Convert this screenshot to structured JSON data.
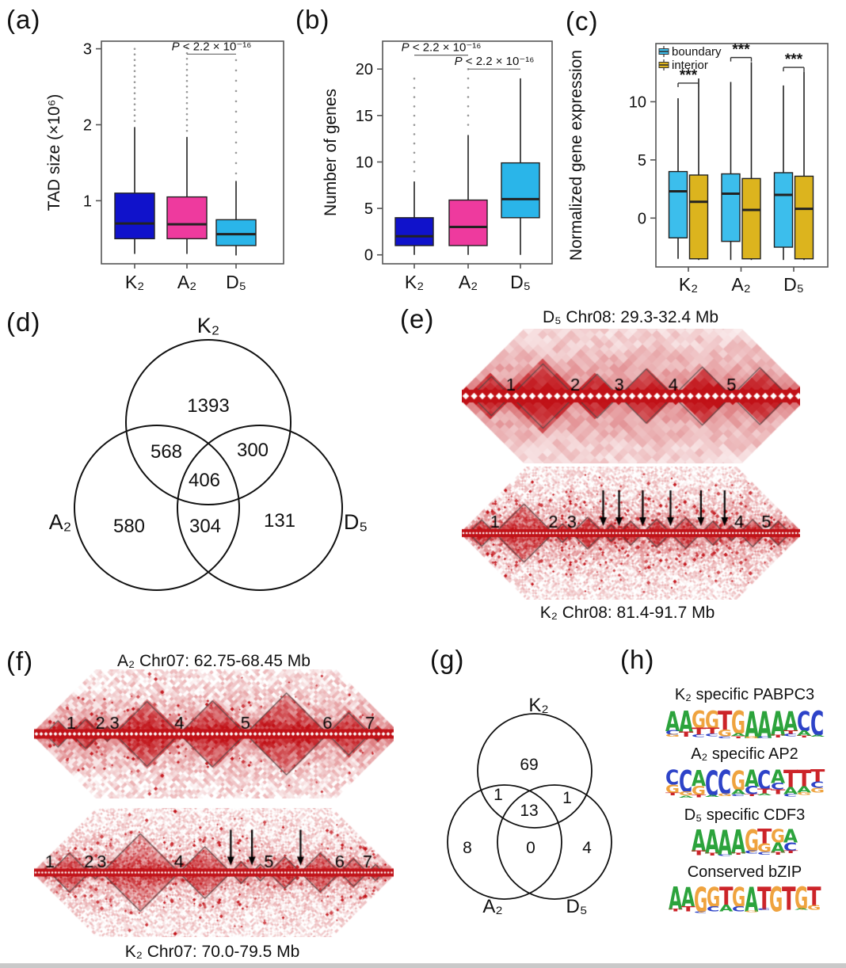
{
  "panel_labels": {
    "a": "(a)",
    "b": "(b)",
    "c": "(c)",
    "d": "(d)",
    "e": "(e)",
    "f": "(f)",
    "g": "(g)",
    "h": "(h)"
  },
  "logo_colors": {
    "A": "#2ca33c",
    "C": "#2d43c8",
    "G": "#efa33f",
    "T": "#cc2429"
  },
  "chart_data": [
    {
      "id": "a",
      "type": "box",
      "ylabel": "TAD size (×10⁶)",
      "yticks": [
        1,
        2,
        3
      ],
      "ylim": [
        0.17,
        3.1
      ],
      "categories": [
        "K₂",
        "A₂",
        "D₅"
      ],
      "boxes": [
        {
          "label": "K₂",
          "color": "#1012cb",
          "whislo": 0.3,
          "q1": 0.5,
          "med": 0.7,
          "q3": 1.1,
          "whishi": 1.97,
          "out_lo": 2.05,
          "out_hi": 3.0,
          "out_step": 7
        },
        {
          "label": "A₂",
          "color": "#ee3a9e",
          "whislo": 0.3,
          "q1": 0.5,
          "med": 0.69,
          "q3": 1.05,
          "whishi": 1.84,
          "out_lo": 1.92,
          "out_hi": 3.02,
          "out_step": 7
        },
        {
          "label": "D₅",
          "color": "#2ab5e9",
          "whislo": 0.28,
          "q1": 0.41,
          "med": 0.56,
          "q3": 0.75,
          "whishi": 1.26,
          "out_lo": 1.36,
          "out_hi": 2.92,
          "out_step": 13
        }
      ],
      "annotations": [
        {
          "text": "P < 2.2 × 10⁻¹⁶",
          "from": 1,
          "to": 2,
          "line_y": 2.93
        }
      ]
    },
    {
      "id": "b",
      "type": "box",
      "ylabel": "Number of genes",
      "yticks": [
        0,
        5,
        10,
        15,
        20
      ],
      "ylim": [
        -0.96,
        23.0
      ],
      "categories": [
        "K₂",
        "A₂",
        "D₅"
      ],
      "boxes": [
        {
          "label": "K₂",
          "color": "#1012cb",
          "whislo": 0,
          "q1": 1,
          "med": 2,
          "q3": 4,
          "whishi": 7.9,
          "out_lo": 9,
          "out_hi": 19,
          "out_step": 11.7
        },
        {
          "label": "A₂",
          "color": "#ee3a9e",
          "whislo": 0,
          "q1": 1,
          "med": 3,
          "q3": 5.9,
          "whishi": 12.9,
          "out_lo": 14,
          "out_hi": 20,
          "out_step": 11.7
        },
        {
          "label": "D₅",
          "color": "#2ab5e9",
          "whislo": 0,
          "q1": 4,
          "med": 6,
          "q3": 9.9,
          "whishi": 19
        }
      ],
      "annotations": [
        {
          "text": "P < 2.2 × 10⁻¹⁶",
          "from": 0,
          "to": 1,
          "line_y": 21.5
        },
        {
          "text": "P < 2.2 × 10⁻¹⁶",
          "from": 1,
          "to": 2,
          "line_y": 20.0
        }
      ]
    },
    {
      "id": "c",
      "type": "box_grouped",
      "ylabel": "Normalized gene expression",
      "yticks": [
        0,
        5,
        10
      ],
      "ylim": [
        -4.2,
        15.0
      ],
      "legend": [
        {
          "label": "boundary",
          "color": "#3cbeec"
        },
        {
          "label": "interior",
          "color": "#dcb41e"
        }
      ],
      "groups": [
        {
          "label": "K₂",
          "sig": "***",
          "sig_y": 11.6,
          "boxes": [
            {
              "series": "boundary",
              "color": "#3cbeec",
              "whislo": -3.5,
              "q1": -1.7,
              "med": 2.3,
              "q3": 4.0,
              "whishi": 10.3
            },
            {
              "series": "interior",
              "color": "#dcb41e",
              "whislo": -3.6,
              "q1": -3.5,
              "med": 1.4,
              "q3": 3.7,
              "whishi": 12.0
            }
          ]
        },
        {
          "label": "A₂",
          "sig": "***",
          "sig_y": 13.8,
          "boxes": [
            {
              "series": "boundary",
              "color": "#3cbeec",
              "whislo": -3.6,
              "q1": -2.0,
              "med": 2.1,
              "q3": 3.8,
              "whishi": 11.7
            },
            {
              "series": "interior",
              "color": "#dcb41e",
              "whislo": -3.6,
              "q1": -3.5,
              "med": 0.7,
              "q3": 3.4,
              "whishi": 13.4
            }
          ]
        },
        {
          "label": "D₅",
          "sig": "***",
          "sig_y": 12.95,
          "boxes": [
            {
              "series": "boundary",
              "color": "#3cbeec",
              "whislo": -3.6,
              "q1": -2.5,
              "med": 2.0,
              "q3": 3.9,
              "whishi": 11.4
            },
            {
              "series": "interior",
              "color": "#dcb41e",
              "whislo": -3.6,
              "q1": -3.5,
              "med": 0.8,
              "q3": 3.6,
              "whishi": 12.6
            }
          ]
        }
      ]
    },
    {
      "id": "d",
      "type": "venn3",
      "set_labels": [
        "K₂",
        "A₂",
        "D₅"
      ],
      "regions": {
        "K2_only": 1393,
        "K2_A2": 568,
        "K2_D5": 300,
        "center": 406,
        "A2_only": 580,
        "A2_D5": 304,
        "D5_only": 131
      }
    },
    {
      "id": "g",
      "type": "venn3",
      "set_labels": [
        "K₂",
        "A₂",
        "D₅"
      ],
      "regions": {
        "K2_only": 69,
        "K2_A2": 1,
        "K2_D5": 1,
        "center": 13,
        "A2_only": 8,
        "A2_D5": 0,
        "D5_only": 4
      }
    },
    {
      "id": "e_top",
      "type": "hic_heatmap",
      "title": "D₅ Chr08: 29.3-32.4 Mb",
      "tad_labels": [
        {
          "t": "1",
          "x": 0.145
        },
        {
          "t": "2",
          "x": 0.335
        },
        {
          "t": "3",
          "x": 0.465
        },
        {
          "t": "4",
          "x": 0.625
        },
        {
          "t": "5",
          "x": 0.797
        }
      ],
      "arrows": [],
      "tads": [
        [
          0.03,
          0.145
        ],
        [
          0.145,
          0.335
        ],
        [
          0.335,
          0.465
        ],
        [
          0.465,
          0.625
        ],
        [
          0.625,
          0.797
        ],
        [
          0.797,
          0.965
        ]
      ]
    },
    {
      "id": "e_bottom",
      "type": "hic_heatmap",
      "caption": "K₂ Chr08: 81.4-91.7 Mb",
      "tad_labels": [
        {
          "t": "1",
          "x": 0.098
        },
        {
          "t": "2",
          "x": 0.27
        },
        {
          "t": "3",
          "x": 0.325
        },
        {
          "t": "4",
          "x": 0.82
        },
        {
          "t": "5",
          "x": 0.9
        }
      ],
      "arrows": [
        0.418,
        0.465,
        0.535,
        0.617,
        0.707,
        0.777
      ],
      "tads": [
        [
          0.02,
          0.098
        ],
        [
          0.098,
          0.27
        ],
        [
          0.27,
          0.325
        ],
        [
          0.325,
          0.418
        ],
        [
          0.418,
          0.465
        ],
        [
          0.465,
          0.535
        ],
        [
          0.535,
          0.617
        ],
        [
          0.617,
          0.707
        ],
        [
          0.707,
          0.777
        ],
        [
          0.777,
          0.82
        ],
        [
          0.82,
          0.9
        ],
        [
          0.9,
          0.97
        ]
      ]
    },
    {
      "id": "f_top",
      "type": "hic_heatmap",
      "title": "A₂ Chr07: 62.75-68.45 Mb",
      "tad_labels": [
        {
          "t": "1",
          "x": 0.103
        },
        {
          "t": "2",
          "x": 0.184
        },
        {
          "t": "3",
          "x": 0.224
        },
        {
          "t": "4",
          "x": 0.404
        },
        {
          "t": "5",
          "x": 0.588
        },
        {
          "t": "6",
          "x": 0.816
        },
        {
          "t": "7",
          "x": 0.934
        }
      ],
      "arrows": [],
      "tads": [
        [
          0.03,
          0.103
        ],
        [
          0.103,
          0.184
        ],
        [
          0.184,
          0.224
        ],
        [
          0.224,
          0.404
        ],
        [
          0.404,
          0.588
        ],
        [
          0.588,
          0.816
        ],
        [
          0.816,
          0.934
        ],
        [
          0.934,
          0.97
        ]
      ]
    },
    {
      "id": "f_bottom",
      "type": "hic_heatmap",
      "caption": "K₂ Chr07: 70.0-79.5 Mb",
      "tad_labels": [
        {
          "t": "1",
          "x": 0.044
        },
        {
          "t": "2",
          "x": 0.153
        },
        {
          "t": "3",
          "x": 0.188
        },
        {
          "t": "4",
          "x": 0.403
        },
        {
          "t": "5",
          "x": 0.653
        },
        {
          "t": "6",
          "x": 0.85
        },
        {
          "t": "7",
          "x": 0.927
        }
      ],
      "arrows": [
        0.547,
        0.606,
        0.741
      ],
      "tads": [
        [
          0.02,
          0.044
        ],
        [
          0.044,
          0.153
        ],
        [
          0.153,
          0.188
        ],
        [
          0.188,
          0.403
        ],
        [
          0.403,
          0.547
        ],
        [
          0.547,
          0.606
        ],
        [
          0.606,
          0.653
        ],
        [
          0.653,
          0.741
        ],
        [
          0.741,
          0.85
        ],
        [
          0.85,
          0.927
        ],
        [
          0.927,
          0.972
        ]
      ]
    },
    {
      "id": "logo_pabpc3",
      "type": "sequence_logo",
      "title": "K₂ specific PABPC3",
      "consensus": "AAGGTGAAAACC",
      "columns": [
        [
          [
            "A",
            0.6
          ],
          [
            "C",
            0.13
          ],
          [
            "G",
            0.08
          ]
        ],
        [
          [
            "A",
            0.66
          ],
          [
            "T",
            0.15
          ]
        ],
        [
          [
            "G",
            0.52
          ],
          [
            "T",
            0.22
          ],
          [
            "C",
            0.07
          ]
        ],
        [
          [
            "G",
            0.55
          ],
          [
            "T",
            0.18
          ],
          [
            "C",
            0.07
          ]
        ],
        [
          [
            "T",
            0.58
          ],
          [
            "G",
            0.2
          ],
          [
            "C",
            0.06
          ]
        ],
        [
          [
            "G",
            0.7
          ],
          [
            "A",
            0.08
          ],
          [
            "T",
            0.06
          ]
        ],
        [
          [
            "A",
            0.8
          ],
          [
            "G",
            0.06
          ]
        ],
        [
          [
            "A",
            0.8
          ],
          [
            "C",
            0.05
          ]
        ],
        [
          [
            "A",
            0.74
          ],
          [
            "T",
            0.08
          ]
        ],
        [
          [
            "A",
            0.6
          ],
          [
            "T",
            0.12
          ],
          [
            "C",
            0.07
          ]
        ],
        [
          [
            "C",
            0.6
          ],
          [
            "A",
            0.16
          ],
          [
            "T",
            0.06
          ]
        ],
        [
          [
            "C",
            0.74
          ],
          [
            "A",
            0.06
          ]
        ]
      ]
    },
    {
      "id": "logo_ap2",
      "type": "sequence_logo",
      "title": "A₂ specific AP2",
      "consensus": "CCACCGACATTT",
      "columns": [
        [
          [
            "C",
            0.45
          ],
          [
            "G",
            0.25
          ],
          [
            "T",
            0.08
          ]
        ],
        [
          [
            "C",
            0.66
          ],
          [
            "G",
            0.12
          ],
          [
            "A",
            0.06
          ]
        ],
        [
          [
            "A",
            0.48
          ],
          [
            "G",
            0.28
          ],
          [
            "T",
            0.07
          ]
        ],
        [
          [
            "C",
            0.76
          ],
          [
            "A",
            0.06
          ]
        ],
        [
          [
            "C",
            0.72
          ],
          [
            "G",
            0.08
          ]
        ],
        [
          [
            "G",
            0.6
          ],
          [
            "A",
            0.14
          ],
          [
            "C",
            0.06
          ]
        ],
        [
          [
            "A",
            0.5
          ],
          [
            "C",
            0.24
          ],
          [
            "T",
            0.06
          ]
        ],
        [
          [
            "C",
            0.58
          ],
          [
            "T",
            0.14
          ],
          [
            "A",
            0.06
          ]
        ],
        [
          [
            "A",
            0.4
          ],
          [
            "C",
            0.2
          ],
          [
            "T",
            0.13
          ]
        ],
        [
          [
            "T",
            0.52
          ],
          [
            "A",
            0.22
          ],
          [
            "C",
            0.07
          ]
        ],
        [
          [
            "T",
            0.52
          ],
          [
            "A",
            0.18
          ],
          [
            "G",
            0.07
          ]
        ],
        [
          [
            "T",
            0.38
          ],
          [
            "C",
            0.18
          ],
          [
            "G",
            0.13
          ]
        ]
      ]
    },
    {
      "id": "logo_cdf3",
      "type": "sequence_logo",
      "title": "D₅ specific CDF3",
      "consensus": "AAAAGTGA",
      "columns": [
        [
          [
            "A",
            0.66
          ],
          [
            "T",
            0.14
          ]
        ],
        [
          [
            "A",
            0.72
          ],
          [
            "T",
            0.08
          ]
        ],
        [
          [
            "A",
            0.76
          ],
          [
            "C",
            0.05
          ]
        ],
        [
          [
            "A",
            0.72
          ],
          [
            "T",
            0.06
          ]
        ],
        [
          [
            "G",
            0.66
          ],
          [
            "C",
            0.09
          ]
        ],
        [
          [
            "T",
            0.44
          ],
          [
            "G",
            0.26
          ],
          [
            "C",
            0.08
          ]
        ],
        [
          [
            "G",
            0.4
          ],
          [
            "A",
            0.3
          ],
          [
            "T",
            0.08
          ]
        ],
        [
          [
            "A",
            0.4
          ],
          [
            "C",
            0.26
          ],
          [
            "T",
            0.08
          ]
        ]
      ]
    },
    {
      "id": "logo_bzip",
      "type": "sequence_logo",
      "title": "Conserved bZIP",
      "consensus": "AAGGTGATGTGT",
      "columns": [
        [
          [
            "A",
            0.7
          ],
          [
            "T",
            0.07
          ]
        ],
        [
          [
            "A",
            0.6
          ],
          [
            "T",
            0.16
          ]
        ],
        [
          [
            "G",
            0.76
          ],
          [
            "C",
            0.05
          ]
        ],
        [
          [
            "G",
            0.6
          ],
          [
            "C",
            0.16
          ]
        ],
        [
          [
            "T",
            0.56
          ],
          [
            "A",
            0.2
          ]
        ],
        [
          [
            "G",
            0.6
          ],
          [
            "C",
            0.16
          ]
        ],
        [
          [
            "A",
            0.74
          ],
          [
            "G",
            0.05
          ]
        ],
        [
          [
            "T",
            0.68
          ],
          [
            "C",
            0.06
          ]
        ],
        [
          [
            "G",
            0.74
          ]
        ],
        [
          [
            "T",
            0.7
          ]
        ],
        [
          [
            "G",
            0.68
          ],
          [
            "A",
            0.05
          ]
        ],
        [
          [
            "T",
            0.58
          ],
          [
            "G",
            0.14
          ]
        ]
      ]
    }
  ]
}
